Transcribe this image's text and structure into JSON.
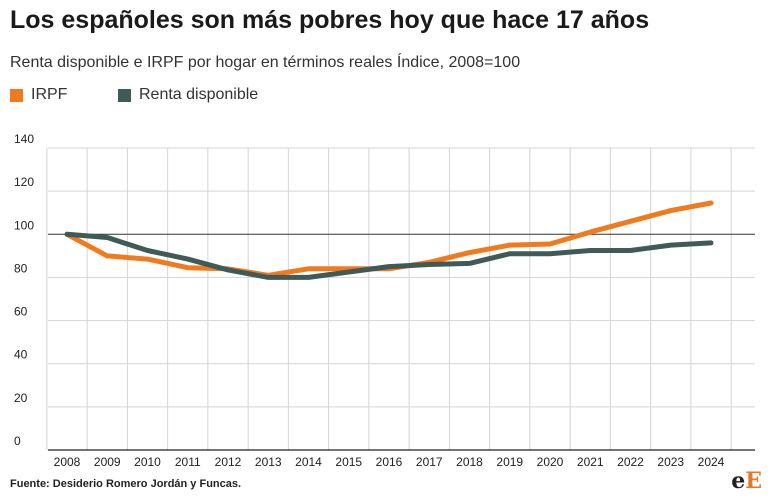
{
  "title": "Los españoles son más pobres hoy que hace 17 años",
  "subtitle": "Renta disponible e IRPF por hogar en términos reales Índice, 2008=100",
  "source": "Fuente: Desiderio Romero Jordán y Funcas.",
  "logo": {
    "part1": "e",
    "part2": "E"
  },
  "colors": {
    "irpf": "#f07b1e",
    "renta": "#3f5a57",
    "grid": "#d4d4d4",
    "baseline": "#333333",
    "axis": "#222222"
  },
  "chart_data": {
    "type": "line",
    "title": "Los españoles son más pobres hoy que hace 17 años",
    "subtitle": "Renta disponible e IRPF por hogar en términos reales Índice, 2008=100",
    "x": [
      "2008",
      "2009",
      "2010",
      "2011",
      "2012",
      "2013",
      "2014",
      "2015",
      "2016",
      "2017",
      "2018",
      "2019",
      "2020",
      "2021",
      "2022",
      "2023",
      "2024"
    ],
    "series": [
      {
        "name": "IRPF",
        "color": "#f07b1e",
        "values": [
          100,
          90,
          88.5,
          84.5,
          84,
          81,
          84,
          84,
          84,
          87,
          91.5,
          95,
          95.5,
          101,
          106,
          111,
          114.5
        ]
      },
      {
        "name": "Renta disponible",
        "color": "#3f5a57",
        "values": [
          100,
          98.5,
          92.5,
          88.5,
          83.5,
          80,
          80,
          82.5,
          85,
          86,
          86.5,
          91,
          91,
          92.5,
          92.5,
          95,
          96
        ]
      }
    ],
    "yticks": [
      0,
      20,
      40,
      60,
      80,
      100,
      120,
      140
    ],
    "ylim": [
      0,
      140
    ],
    "reference_line": 100,
    "grid": true,
    "legend": "top-left"
  }
}
